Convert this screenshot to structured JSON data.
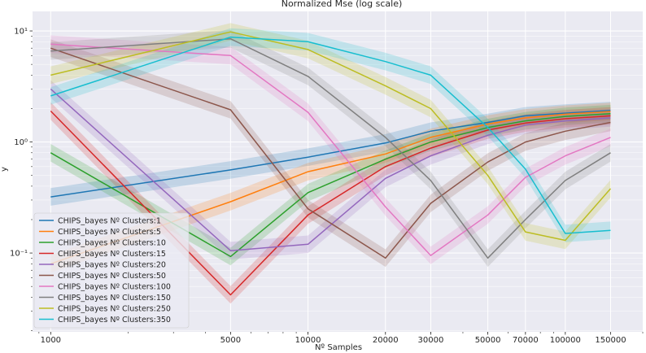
{
  "chart_data": {
    "type": "line",
    "title": "Normalized Mse (log scale)",
    "xlabel": "Nº Samples",
    "ylabel": "y",
    "xscale": "log",
    "yscale": "log",
    "xlim": [
      850,
      200000
    ],
    "ylim": [
      0.0195,
      15
    ],
    "x": [
      1000,
      5000,
      10000,
      20000,
      30000,
      50000,
      70000,
      100000,
      150000
    ],
    "x_tick_labels": [
      "1000",
      "5000",
      "10000",
      "20000",
      "30000",
      "50000",
      "70000",
      "100000",
      "150000"
    ],
    "y_ticks": [
      {
        "value": 0.1,
        "label": "10⁻¹"
      },
      {
        "value": 1,
        "label": "10⁰"
      },
      {
        "value": 10,
        "label": "10¹"
      }
    ],
    "grid": true,
    "legend_position": "lower-left",
    "series": [
      {
        "name": "CHIPS_bayes Nº Clusters:1",
        "color": "#1f77b4",
        "values": [
          0.32,
          0.56,
          0.73,
          0.98,
          1.25,
          1.5,
          1.72,
          1.82,
          1.92
        ]
      },
      {
        "name": "CHIPS_bayes Nº Clusters:5",
        "color": "#ff7f0e",
        "values": [
          0.08,
          0.29,
          0.54,
          0.78,
          1.1,
          1.45,
          1.65,
          1.78,
          1.88
        ]
      },
      {
        "name": "CHIPS_bayes Nº Clusters:10",
        "color": "#2ca02c",
        "values": [
          0.8,
          0.093,
          0.35,
          0.7,
          1.0,
          1.35,
          1.55,
          1.7,
          1.8
        ]
      },
      {
        "name": "CHIPS_bayes Nº Clusters:15",
        "color": "#d62728",
        "values": [
          1.9,
          0.042,
          0.22,
          0.6,
          0.88,
          1.28,
          1.48,
          1.62,
          1.72
        ]
      },
      {
        "name": "CHIPS_bayes Nº Clusters:20",
        "color": "#9467bd",
        "values": [
          3.0,
          0.105,
          0.12,
          0.47,
          0.75,
          1.15,
          1.42,
          1.55,
          1.65
        ]
      },
      {
        "name": "CHIPS_bayes Nº Clusters:50",
        "color": "#8c564b",
        "values": [
          7.0,
          1.95,
          0.25,
          0.09,
          0.28,
          0.66,
          1.0,
          1.25,
          1.5
        ]
      },
      {
        "name": "CHIPS_bayes Nº Clusters:100",
        "color": "#e377c2",
        "values": [
          7.6,
          6.0,
          1.85,
          0.26,
          0.095,
          0.22,
          0.48,
          0.75,
          1.1
        ]
      },
      {
        "name": "CHIPS_bayes Nº Clusters:150",
        "color": "#7f7f7f",
        "values": [
          6.6,
          8.5,
          3.9,
          1.1,
          0.45,
          0.09,
          0.2,
          0.45,
          0.8
        ]
      },
      {
        "name": "CHIPS_bayes Nº Clusters:250",
        "color": "#bcbd22",
        "values": [
          4.0,
          9.8,
          6.8,
          3.2,
          2.0,
          0.5,
          0.155,
          0.13,
          0.38
        ]
      },
      {
        "name": "CHIPS_bayes Nº Clusters:350",
        "color": "#17becf",
        "values": [
          2.6,
          8.8,
          8.0,
          5.3,
          4.0,
          1.35,
          0.57,
          0.15,
          0.16
        ]
      }
    ]
  }
}
